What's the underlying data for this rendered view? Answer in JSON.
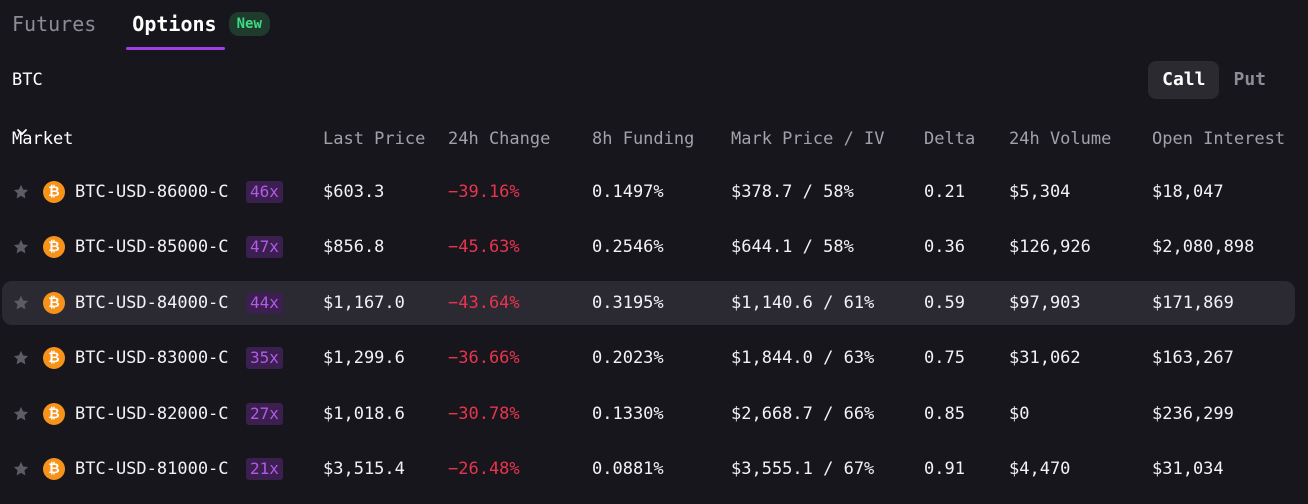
{
  "tabs": {
    "futures": "Futures",
    "options": "Options",
    "new_badge": "New"
  },
  "symbol": "BTC",
  "toggle": {
    "call": "Call",
    "put": "Put"
  },
  "headers": {
    "market": "Market",
    "last_price": "Last Price",
    "change_24h": "24h Change",
    "funding_8h": "8h Funding",
    "mark_iv": "Mark Price / IV",
    "delta": "Delta",
    "volume_24h": "24h Volume",
    "open_interest": "Open Interest"
  },
  "icons": {
    "star": "star-icon",
    "coin": "bitcoin-icon",
    "coin_glyph": "₿",
    "dropdown": "chevron-down-icon"
  },
  "colors": {
    "accent": "#a43ee6",
    "negative": "#e8344d",
    "leverage": "#b35ae8",
    "new": "#3ddc84",
    "btc": "#f7931a"
  },
  "rows": [
    {
      "market": "BTC-USD-86000-C",
      "leverage": "46x",
      "last": "$603.3",
      "change": "−39.16%",
      "funding": "0.1497%",
      "mark_iv": "$378.7 / 58%",
      "delta": "0.21",
      "volume": "$5,304",
      "oi": "$18,047"
    },
    {
      "market": "BTC-USD-85000-C",
      "leverage": "47x",
      "last": "$856.8",
      "change": "−45.63%",
      "funding": "0.2546%",
      "mark_iv": "$644.1 / 58%",
      "delta": "0.36",
      "volume": "$126,926",
      "oi": "$2,080,898"
    },
    {
      "market": "BTC-USD-84000-C",
      "leverage": "44x",
      "last": "$1,167.0",
      "change": "−43.64%",
      "funding": "0.3195%",
      "mark_iv": "$1,140.6 / 61%",
      "delta": "0.59",
      "volume": "$97,903",
      "oi": "$171,869",
      "highlighted": true
    },
    {
      "market": "BTC-USD-83000-C",
      "leverage": "35x",
      "last": "$1,299.6",
      "change": "−36.66%",
      "funding": "0.2023%",
      "mark_iv": "$1,844.0 / 63%",
      "delta": "0.75",
      "volume": "$31,062",
      "oi": "$163,267"
    },
    {
      "market": "BTC-USD-82000-C",
      "leverage": "27x",
      "last": "$1,018.6",
      "change": "−30.78%",
      "funding": "0.1330%",
      "mark_iv": "$2,668.7 / 66%",
      "delta": "0.85",
      "volume": "$0",
      "oi": "$236,299"
    },
    {
      "market": "BTC-USD-81000-C",
      "leverage": "21x",
      "last": "$3,515.4",
      "change": "−26.48%",
      "funding": "0.0881%",
      "mark_iv": "$3,555.1 / 67%",
      "delta": "0.91",
      "volume": "$4,470",
      "oi": "$31,034"
    }
  ]
}
